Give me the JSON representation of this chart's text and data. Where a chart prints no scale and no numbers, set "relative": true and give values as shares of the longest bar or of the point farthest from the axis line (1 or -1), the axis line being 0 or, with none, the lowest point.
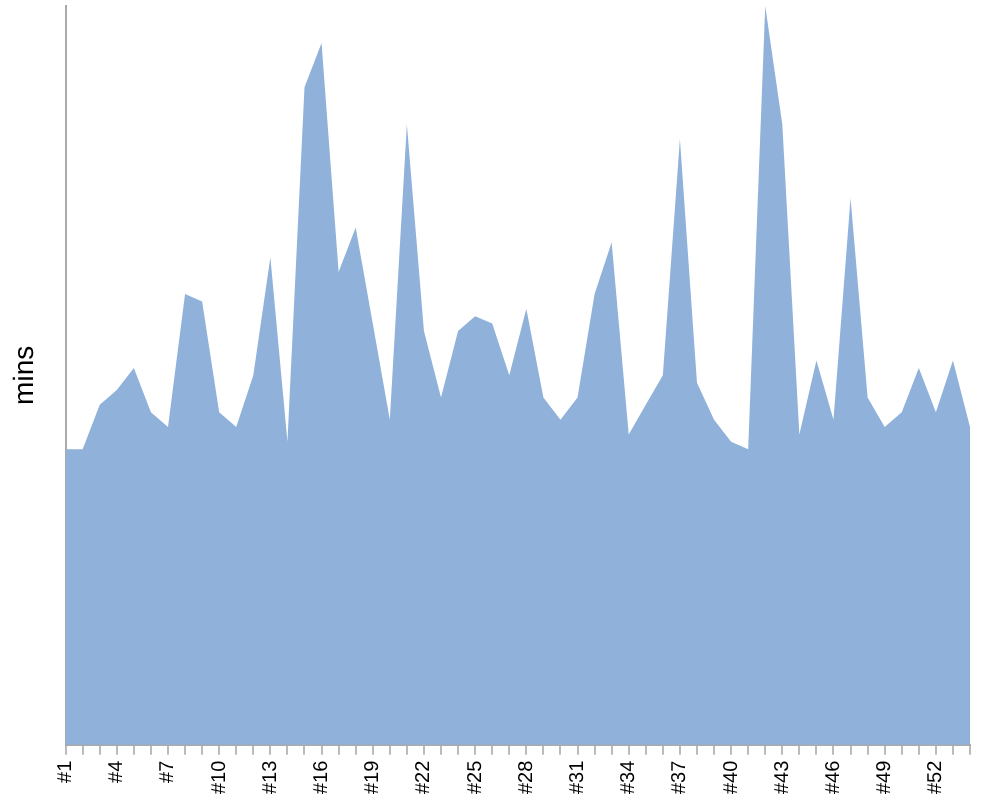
{
  "chart_data": {
    "type": "area",
    "ylabel": "mins",
    "relative": true,
    "color": "#8fb1da",
    "grid": false,
    "legend": false,
    "categories": [
      "#1",
      null,
      null,
      "#4",
      null,
      null,
      "#7",
      null,
      null,
      "#10",
      null,
      null,
      "#13",
      null,
      null,
      "#16",
      null,
      null,
      "#19",
      null,
      null,
      "#22",
      null,
      null,
      "#25",
      null,
      null,
      "#28",
      null,
      null,
      "#31",
      null,
      null,
      "#34",
      null,
      null,
      "#37",
      null,
      null,
      "#40",
      null,
      null,
      "#43",
      null,
      null,
      "#46",
      null,
      null,
      "#49",
      null,
      null,
      "#52",
      null,
      null
    ],
    "values": [
      0.4,
      0.4,
      0.46,
      0.48,
      0.51,
      0.45,
      0.43,
      0.61,
      0.6,
      0.45,
      0.43,
      0.5,
      0.66,
      0.41,
      0.89,
      0.95,
      0.64,
      0.7,
      0.57,
      0.44,
      0.84,
      0.56,
      0.47,
      0.56,
      0.58,
      0.57,
      0.5,
      0.59,
      0.47,
      0.44,
      0.47,
      0.61,
      0.68,
      0.42,
      0.46,
      0.5,
      0.82,
      0.49,
      0.44,
      0.41,
      0.4,
      1.0,
      0.84,
      0.42,
      0.52,
      0.44,
      0.74,
      0.47,
      0.43,
      0.45,
      0.51,
      0.45,
      0.52,
      0.43
    ]
  }
}
